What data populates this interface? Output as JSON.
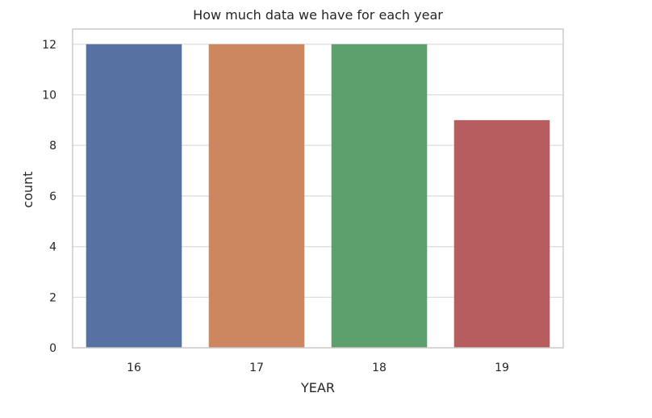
{
  "chart_data": {
    "type": "bar",
    "title": "How much data we have for each year",
    "xlabel": "YEAR",
    "ylabel": "count",
    "categories": [
      "16",
      "17",
      "18",
      "19"
    ],
    "values": [
      12,
      12,
      12,
      9
    ],
    "colors": [
      "#5572a3",
      "#cc8760",
      "#5ea06d",
      "#b75c5f"
    ],
    "ylim": [
      0,
      12.6
    ],
    "yticks": [
      0,
      2,
      4,
      6,
      8,
      10,
      12
    ],
    "grid": true,
    "grid_color": "#d9d9d9",
    "frame_color": "#cccccc"
  }
}
